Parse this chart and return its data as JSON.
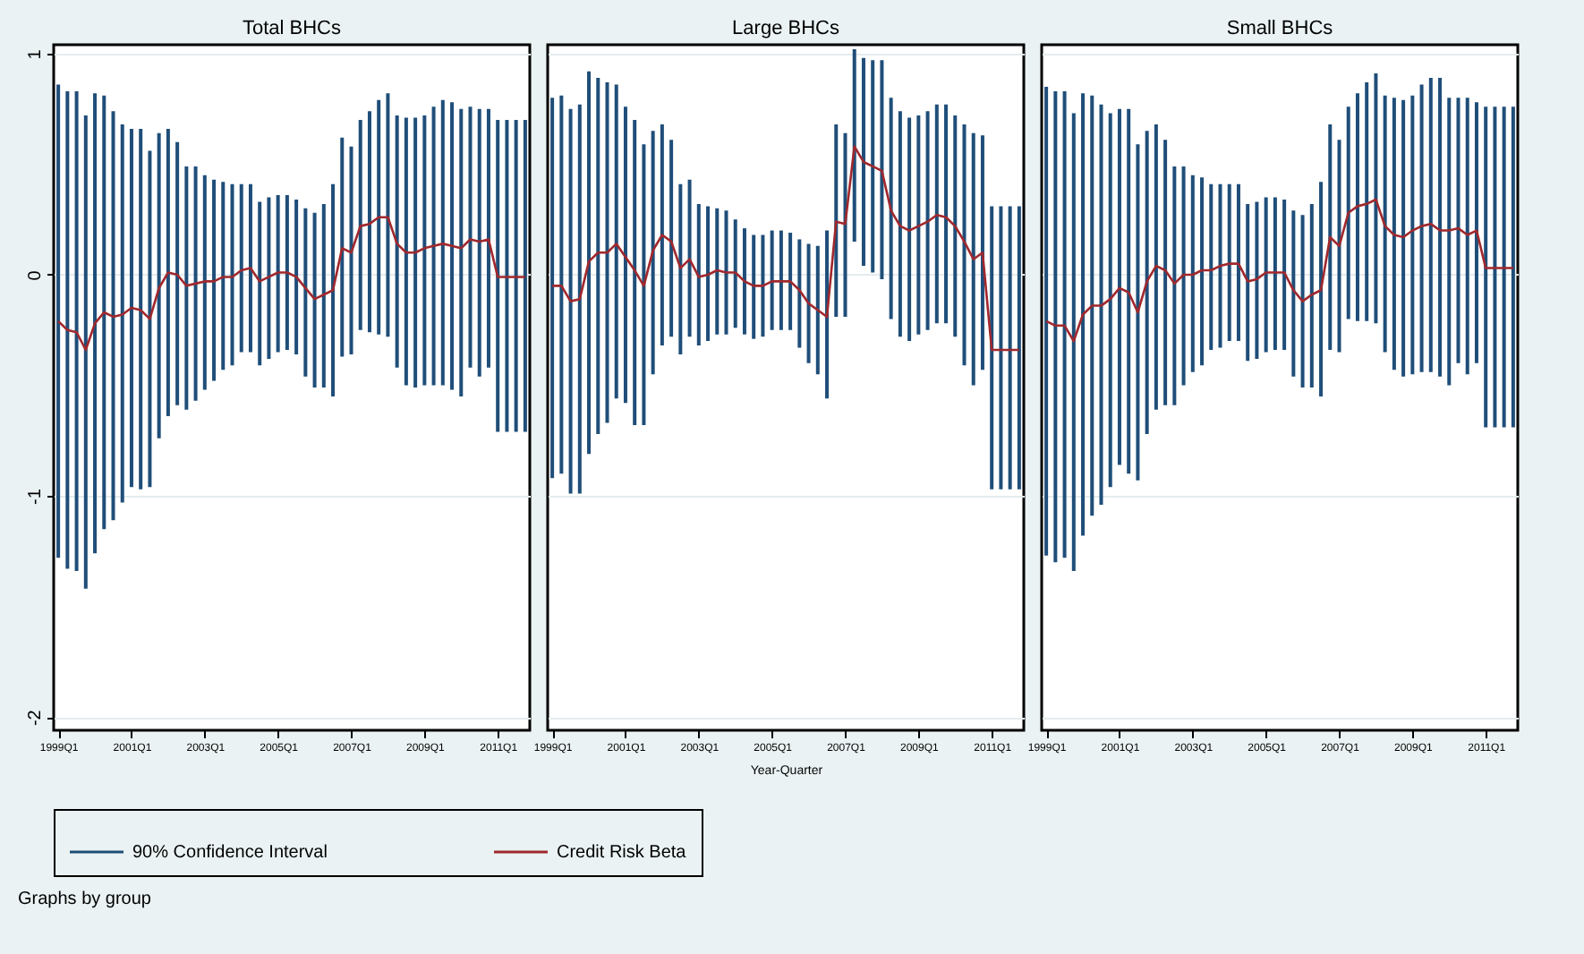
{
  "chart_data": [
    {
      "type": "line",
      "title": "Total BHCs",
      "categories": [
        "1999Q1",
        null,
        null,
        null,
        null,
        null,
        null,
        null,
        "2001Q1",
        null,
        null,
        null,
        null,
        null,
        null,
        null,
        "2003Q1",
        null,
        null,
        null,
        null,
        null,
        null,
        null,
        "2005Q1",
        null,
        null,
        null,
        null,
        null,
        null,
        null,
        "2007Q1",
        null,
        null,
        null,
        null,
        null,
        null,
        null,
        "2009Q1",
        null,
        null,
        null,
        null,
        null,
        null,
        null,
        "2011Q1",
        null,
        null,
        null
      ],
      "ylim": [
        -2.06,
        1.04
      ],
      "yticks": [
        -2,
        -1,
        0,
        1
      ],
      "grid": "y",
      "legend": "bottom",
      "annotations": [
        "Graphs by group"
      ],
      "series": [
        {
          "name": "90% Confidence Interval",
          "type": "bar",
          "color": "#1f4e79",
          "base": [
            -1.28,
            -1.33,
            -1.34,
            -1.42,
            -1.26,
            -1.15,
            -1.11,
            -1.03,
            -0.96,
            -0.97,
            -0.96,
            -0.74,
            -0.64,
            -0.59,
            -0.61,
            -0.57,
            -0.52,
            -0.48,
            -0.43,
            -0.41,
            -0.35,
            -0.35,
            -0.41,
            -0.38,
            -0.35,
            -0.34,
            -0.36,
            -0.46,
            -0.51,
            -0.51,
            -0.55,
            -0.37,
            -0.36,
            -0.25,
            -0.26,
            -0.27,
            -0.28,
            -0.42,
            -0.5,
            -0.51,
            -0.5,
            -0.5,
            -0.5,
            -0.52,
            -0.55,
            -0.42,
            -0.46,
            -0.42,
            -0.71,
            -0.71,
            -0.71,
            -0.71
          ],
          "values": [
            2.14,
            2.16,
            2.17,
            2.14,
            2.08,
            1.96,
            1.85,
            1.71,
            1.62,
            1.63,
            1.52,
            1.38,
            1.3,
            1.19,
            1.1,
            1.06,
            0.97,
            0.91,
            0.85,
            0.82,
            0.76,
            0.76,
            0.74,
            0.73,
            0.71,
            0.7,
            0.7,
            0.76,
            0.79,
            0.83,
            0.96,
            0.99,
            0.94,
            0.95,
            1.0,
            1.06,
            1.1,
            1.14,
            1.21,
            1.22,
            1.22,
            1.26,
            1.29,
            1.3,
            1.3,
            1.18,
            1.21,
            1.17,
            1.41,
            1.41,
            1.41,
            1.41
          ]
        },
        {
          "name": "Credit Risk Beta",
          "color": "#a0282d",
          "values": [
            -0.21,
            -0.25,
            -0.26,
            -0.34,
            -0.22,
            -0.17,
            -0.19,
            -0.18,
            -0.15,
            -0.16,
            -0.2,
            -0.06,
            0.01,
            0.0,
            -0.05,
            -0.04,
            -0.03,
            -0.03,
            -0.01,
            -0.01,
            0.02,
            0.03,
            -0.03,
            -0.01,
            0.01,
            0.01,
            -0.01,
            -0.06,
            -0.11,
            -0.09,
            -0.07,
            0.12,
            0.1,
            0.22,
            0.23,
            0.26,
            0.26,
            0.14,
            0.1,
            0.1,
            0.12,
            0.13,
            0.14,
            0.13,
            0.12,
            0.16,
            0.15,
            0.16,
            -0.01,
            -0.01,
            -0.01,
            -0.01
          ]
        }
      ]
    },
    {
      "type": "line",
      "title": "Large BHCs",
      "xlabel": "Year-Quarter",
      "tick_labels": "x",
      "categories": [
        "1999Q1",
        null,
        null,
        null,
        null,
        null,
        null,
        null,
        "2001Q1",
        null,
        null,
        null,
        null,
        null,
        null,
        null,
        "2003Q1",
        null,
        null,
        null,
        null,
        null,
        null,
        null,
        "2005Q1",
        null,
        null,
        null,
        null,
        null,
        null,
        null,
        "2007Q1",
        null,
        null,
        null,
        null,
        null,
        null,
        null,
        "2009Q1",
        null,
        null,
        null,
        null,
        null,
        null,
        null,
        "2011Q1",
        null,
        null,
        null
      ],
      "ylim": [
        -2.06,
        1.04
      ],
      "yticks": [
        -2,
        -1,
        0,
        1
      ],
      "grid": "y",
      "legend": "bottom",
      "series": [
        {
          "name": "90% Confidence Interval",
          "type": "bar",
          "color": "#1f4e79",
          "base": [
            -0.92,
            -0.9,
            -0.99,
            -0.99,
            -0.81,
            -0.72,
            -0.67,
            -0.56,
            -0.58,
            -0.68,
            -0.68,
            -0.45,
            -0.32,
            -0.28,
            -0.36,
            -0.28,
            -0.32,
            -0.3,
            -0.27,
            -0.27,
            -0.24,
            -0.27,
            -0.29,
            -0.28,
            -0.25,
            -0.25,
            -0.25,
            -0.33,
            -0.4,
            -0.45,
            -0.56,
            -0.19,
            -0.19,
            0.15,
            0.04,
            0.01,
            -0.02,
            -0.2,
            -0.28,
            -0.3,
            -0.27,
            -0.25,
            -0.22,
            -0.22,
            -0.28,
            -0.41,
            -0.5,
            -0.43,
            -0.97,
            -0.97,
            -0.97,
            -0.97
          ],
          "values": [
            1.72,
            1.71,
            1.74,
            1.76,
            1.73,
            1.61,
            1.54,
            1.42,
            1.34,
            1.38,
            1.27,
            1.1,
            1.0,
            0.89,
            0.77,
            0.71,
            0.64,
            0.61,
            0.57,
            0.56,
            0.49,
            0.48,
            0.47,
            0.46,
            0.45,
            0.45,
            0.44,
            0.49,
            0.54,
            0.58,
            0.76,
            0.87,
            0.83,
            0.87,
            0.94,
            0.96,
            0.99,
            1.0,
            1.02,
            1.01,
            0.99,
            0.99,
            0.99,
            0.99,
            1.0,
            1.09,
            1.14,
            1.06,
            1.28,
            1.28,
            1.28,
            1.28
          ]
        },
        {
          "name": "Credit Risk Beta",
          "color": "#a0282d",
          "values": [
            -0.05,
            -0.05,
            -0.12,
            -0.11,
            0.06,
            0.1,
            0.1,
            0.14,
            0.08,
            0.02,
            -0.05,
            0.11,
            0.18,
            0.15,
            0.03,
            0.07,
            -0.01,
            0.0,
            0.02,
            0.01,
            0.01,
            -0.03,
            -0.05,
            -0.05,
            -0.03,
            -0.03,
            -0.03,
            -0.07,
            -0.13,
            -0.16,
            -0.19,
            0.24,
            0.23,
            0.58,
            0.51,
            0.49,
            0.47,
            0.29,
            0.22,
            0.2,
            0.22,
            0.24,
            0.27,
            0.26,
            0.22,
            0.15,
            0.07,
            0.1,
            -0.34,
            -0.34,
            -0.34,
            -0.34
          ]
        }
      ]
    },
    {
      "type": "line",
      "title": "Small BHCs",
      "tick_labels": "x",
      "categories": [
        "1999Q1",
        null,
        null,
        null,
        null,
        null,
        null,
        null,
        "2001Q1",
        null,
        null,
        null,
        null,
        null,
        null,
        null,
        "2003Q1",
        null,
        null,
        null,
        null,
        null,
        null,
        null,
        "2005Q1",
        null,
        null,
        null,
        null,
        null,
        null,
        null,
        "2007Q1",
        null,
        null,
        null,
        null,
        null,
        null,
        null,
        "2009Q1",
        null,
        null,
        null,
        null,
        null,
        null,
        null,
        "2011Q1",
        null,
        null,
        null
      ],
      "ylim": [
        -2.06,
        1.04
      ],
      "yticks": [
        -2,
        -1,
        0,
        1
      ],
      "grid": "y",
      "legend": "bottom",
      "series": [
        {
          "name": "90% Confidence Interval",
          "type": "bar",
          "color": "#1f4e79",
          "base": [
            -1.27,
            -1.3,
            -1.28,
            -1.34,
            -1.18,
            -1.09,
            -1.04,
            -0.96,
            -0.86,
            -0.9,
            -0.93,
            -0.72,
            -0.61,
            -0.59,
            -0.59,
            -0.5,
            -0.44,
            -0.41,
            -0.34,
            -0.33,
            -0.3,
            -0.3,
            -0.39,
            -0.38,
            -0.35,
            -0.34,
            -0.34,
            -0.46,
            -0.51,
            -0.51,
            -0.55,
            -0.34,
            -0.35,
            -0.2,
            -0.21,
            -0.21,
            -0.22,
            -0.35,
            -0.43,
            -0.46,
            -0.45,
            -0.44,
            -0.44,
            -0.46,
            -0.5,
            -0.4,
            -0.45,
            -0.4,
            -0.69,
            -0.69,
            -0.69,
            -0.69
          ],
          "values": [
            2.12,
            2.13,
            2.11,
            2.07,
            2.0,
            1.9,
            1.81,
            1.69,
            1.61,
            1.65,
            1.52,
            1.37,
            1.29,
            1.2,
            1.08,
            0.99,
            0.89,
            0.85,
            0.75,
            0.74,
            0.71,
            0.71,
            0.71,
            0.71,
            0.7,
            0.69,
            0.68,
            0.75,
            0.78,
            0.83,
            0.97,
            1.02,
            0.96,
            0.96,
            1.03,
            1.08,
            1.13,
            1.16,
            1.23,
            1.25,
            1.26,
            1.3,
            1.33,
            1.35,
            1.3,
            1.2,
            1.25,
            1.18,
            1.45,
            1.45,
            1.45,
            1.45
          ]
        },
        {
          "name": "Credit Risk Beta",
          "color": "#a0282d",
          "values": [
            -0.21,
            -0.23,
            -0.23,
            -0.3,
            -0.18,
            -0.14,
            -0.14,
            -0.11,
            -0.06,
            -0.08,
            -0.17,
            -0.03,
            0.04,
            0.02,
            -0.04,
            0.0,
            0.0,
            0.02,
            0.02,
            0.04,
            0.05,
            0.05,
            -0.03,
            -0.02,
            0.01,
            0.01,
            0.01,
            -0.07,
            -0.12,
            -0.09,
            -0.07,
            0.17,
            0.13,
            0.28,
            0.31,
            0.32,
            0.34,
            0.22,
            0.18,
            0.17,
            0.2,
            0.22,
            0.23,
            0.2,
            0.2,
            0.21,
            0.18,
            0.2,
            0.03,
            0.03,
            0.03,
            0.03
          ]
        }
      ]
    }
  ]
}
